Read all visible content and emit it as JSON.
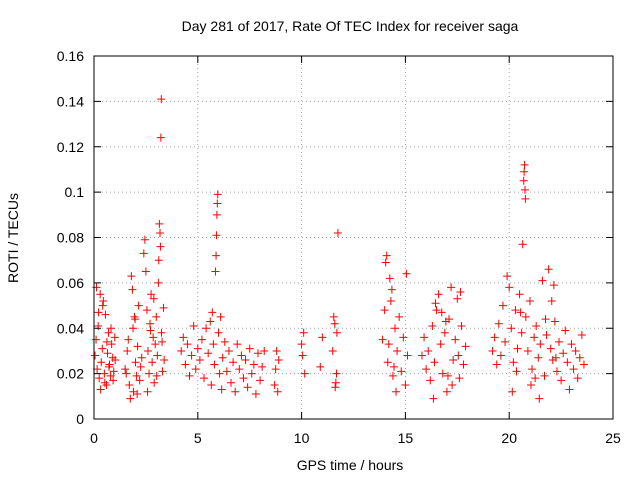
{
  "chart_data": {
    "type": "scatter",
    "title": "Day 281 of 2017, Rate Of TEC Index for receiver saga",
    "xlabel": "GPS time / hours",
    "ylabel": "ROTI / TECUs",
    "xlim": [
      0,
      25
    ],
    "ylim": [
      0,
      0.16
    ],
    "xticks": [
      0,
      5,
      10,
      15,
      20,
      25
    ],
    "yticks": [
      0,
      0.02,
      0.04,
      0.06,
      0.08,
      0.1,
      0.12,
      0.14,
      0.16
    ],
    "xtick_labels": [
      "0",
      "5",
      "10",
      "15",
      "20",
      "25"
    ],
    "ytick_labels": [
      "0",
      "0.02",
      "0.04",
      "0.06",
      "0.08",
      "0.1",
      "0.12",
      "0.14",
      "0.16"
    ],
    "grid": true,
    "marker": "+",
    "color": "#ff0000",
    "series": [
      {
        "name": "ROTI",
        "points": [
          [
            0.05,
            0.028
          ],
          [
            0.1,
            0.035
          ],
          [
            0.15,
            0.022
          ],
          [
            0.2,
            0.041
          ],
          [
            0.25,
            0.018
          ],
          [
            0.3,
            0.055
          ],
          [
            0.35,
            0.025
          ],
          [
            0.4,
            0.031
          ],
          [
            0.45,
            0.052
          ],
          [
            0.5,
            0.02
          ],
          [
            0.55,
            0.046
          ],
          [
            0.6,
            0.015
          ],
          [
            0.65,
            0.029
          ],
          [
            0.7,
            0.038
          ],
          [
            0.75,
            0.024
          ],
          [
            0.8,
            0.019
          ],
          [
            0.85,
            0.033
          ],
          [
            0.9,
            0.027
          ],
          [
            0.95,
            0.021
          ],
          [
            1.0,
            0.036
          ],
          [
            0.12,
            0.058
          ],
          [
            0.22,
            0.047
          ],
          [
            0.32,
            0.013
          ],
          [
            0.42,
            0.05
          ],
          [
            0.52,
            0.016
          ],
          [
            0.62,
            0.034
          ],
          [
            0.72,
            0.023
          ],
          [
            0.82,
            0.04
          ],
          [
            0.92,
            0.017
          ],
          [
            1.02,
            0.026
          ],
          [
            1.5,
            0.022
          ],
          [
            1.6,
            0.03
          ],
          [
            1.7,
            0.015
          ],
          [
            1.8,
            0.063
          ],
          [
            1.85,
            0.057
          ],
          [
            1.9,
            0.012
          ],
          [
            1.95,
            0.045
          ],
          [
            2.0,
            0.025
          ],
          [
            2.05,
            0.019
          ],
          [
            2.1,
            0.032
          ],
          [
            1.75,
            0.009
          ],
          [
            1.88,
            0.04
          ],
          [
            2.15,
            0.05
          ],
          [
            2.2,
            0.017
          ],
          [
            2.3,
            0.027
          ],
          [
            1.55,
            0.02
          ],
          [
            1.65,
            0.035
          ],
          [
            1.98,
            0.044
          ],
          [
            2.08,
            0.011
          ],
          [
            2.25,
            0.023
          ],
          [
            2.4,
            0.073
          ],
          [
            2.45,
            0.079
          ],
          [
            2.5,
            0.065
          ],
          [
            2.55,
            0.048
          ],
          [
            2.6,
            0.03
          ],
          [
            2.65,
            0.02
          ],
          [
            2.7,
            0.042
          ],
          [
            2.75,
            0.055
          ],
          [
            2.8,
            0.025
          ],
          [
            2.85,
            0.036
          ],
          [
            2.9,
            0.016
          ],
          [
            2.95,
            0.033
          ],
          [
            3.0,
            0.045
          ],
          [
            3.05,
            0.028
          ],
          [
            3.1,
            0.06
          ],
          [
            3.15,
            0.086
          ],
          [
            3.2,
            0.076
          ],
          [
            3.25,
            0.038
          ],
          [
            3.3,
            0.021
          ],
          [
            3.35,
            0.049
          ],
          [
            3.22,
            0.124
          ],
          [
            3.24,
            0.141
          ],
          [
            3.18,
            0.082
          ],
          [
            3.12,
            0.07
          ],
          [
            2.58,
            0.012
          ],
          [
            2.72,
            0.039
          ],
          [
            2.88,
            0.053
          ],
          [
            3.02,
            0.019
          ],
          [
            3.28,
            0.034
          ],
          [
            3.38,
            0.026
          ],
          [
            4.2,
            0.03
          ],
          [
            4.3,
            0.036
          ],
          [
            4.4,
            0.024
          ],
          [
            4.5,
            0.033
          ],
          [
            4.6,
            0.019
          ],
          [
            4.7,
            0.028
          ],
          [
            4.8,
            0.041
          ],
          [
            4.9,
            0.022
          ],
          [
            5.0,
            0.031
          ],
          [
            5.1,
            0.026
          ],
          [
            5.2,
            0.035
          ],
          [
            5.3,
            0.018
          ],
          [
            5.4,
            0.04
          ],
          [
            5.5,
            0.029
          ],
          [
            5.6,
            0.043
          ],
          [
            5.65,
            0.015
          ],
          [
            5.7,
            0.047
          ],
          [
            5.75,
            0.033
          ],
          [
            5.8,
            0.024
          ],
          [
            5.85,
            0.065
          ],
          [
            5.88,
            0.072
          ],
          [
            5.9,
            0.081
          ],
          [
            5.92,
            0.09
          ],
          [
            5.94,
            0.095
          ],
          [
            5.96,
            0.099
          ],
          [
            6.0,
            0.038
          ],
          [
            6.05,
            0.02
          ],
          [
            6.1,
            0.045
          ],
          [
            6.15,
            0.013
          ],
          [
            6.2,
            0.027
          ],
          [
            6.3,
            0.034
          ],
          [
            6.4,
            0.021
          ],
          [
            6.5,
            0.03
          ],
          [
            6.6,
            0.016
          ],
          [
            6.7,
            0.025
          ],
          [
            6.8,
            0.012
          ],
          [
            6.9,
            0.033
          ],
          [
            7.0,
            0.022
          ],
          [
            7.1,
            0.028
          ],
          [
            7.2,
            0.018
          ],
          [
            7.3,
            0.026
          ],
          [
            7.4,
            0.014
          ],
          [
            7.5,
            0.031
          ],
          [
            7.6,
            0.02
          ],
          [
            7.7,
            0.024
          ],
          [
            7.8,
            0.011
          ],
          [
            7.9,
            0.029
          ],
          [
            8.0,
            0.017
          ],
          [
            8.1,
            0.023
          ],
          [
            8.2,
            0.03
          ],
          [
            8.7,
            0.015
          ],
          [
            8.75,
            0.022
          ],
          [
            8.8,
            0.03
          ],
          [
            8.85,
            0.012
          ],
          [
            8.9,
            0.026
          ],
          [
            10.0,
            0.033
          ],
          [
            10.05,
            0.028
          ],
          [
            10.1,
            0.038
          ],
          [
            10.15,
            0.02
          ],
          [
            10.9,
            0.023
          ],
          [
            11.0,
            0.036
          ],
          [
            11.5,
            0.03
          ],
          [
            11.55,
            0.045
          ],
          [
            11.6,
            0.042
          ],
          [
            11.65,
            0.016
          ],
          [
            11.7,
            0.038
          ],
          [
            11.75,
            0.082
          ],
          [
            11.62,
            0.014
          ],
          [
            11.68,
            0.02
          ],
          [
            13.9,
            0.035
          ],
          [
            14.0,
            0.048
          ],
          [
            14.05,
            0.069
          ],
          [
            14.1,
            0.072
          ],
          [
            14.15,
            0.025
          ],
          [
            14.2,
            0.033
          ],
          [
            14.3,
            0.052
          ],
          [
            14.4,
            0.019
          ],
          [
            14.5,
            0.04
          ],
          [
            14.55,
            0.012
          ],
          [
            14.6,
            0.03
          ],
          [
            14.7,
            0.045
          ],
          [
            14.8,
            0.021
          ],
          [
            14.9,
            0.036
          ],
          [
            15.0,
            0.015
          ],
          [
            15.05,
            0.064
          ],
          [
            15.1,
            0.028
          ],
          [
            14.25,
            0.062
          ],
          [
            14.35,
            0.057
          ],
          [
            14.45,
            0.023
          ],
          [
            15.8,
            0.028
          ],
          [
            15.9,
            0.036
          ],
          [
            16.0,
            0.022
          ],
          [
            16.1,
            0.03
          ],
          [
            16.2,
            0.017
          ],
          [
            16.3,
            0.041
          ],
          [
            16.4,
            0.025
          ],
          [
            16.5,
            0.048
          ],
          [
            16.6,
            0.055
          ],
          [
            16.7,
            0.033
          ],
          [
            16.8,
            0.02
          ],
          [
            16.9,
            0.038
          ],
          [
            17.0,
            0.012
          ],
          [
            17.1,
            0.044
          ],
          [
            17.2,
            0.058
          ],
          [
            17.3,
            0.026
          ],
          [
            17.4,
            0.035
          ],
          [
            17.5,
            0.053
          ],
          [
            17.6,
            0.018
          ],
          [
            17.7,
            0.041
          ],
          [
            17.8,
            0.024
          ],
          [
            17.9,
            0.032
          ],
          [
            16.35,
            0.009
          ],
          [
            16.75,
            0.047
          ],
          [
            17.25,
            0.015
          ],
          [
            17.55,
            0.028
          ],
          [
            17.65,
            0.056
          ],
          [
            16.45,
            0.051
          ],
          [
            16.95,
            0.043
          ],
          [
            17.05,
            0.019
          ],
          [
            19.2,
            0.03
          ],
          [
            19.3,
            0.036
          ],
          [
            19.4,
            0.024
          ],
          [
            19.5,
            0.042
          ],
          [
            19.6,
            0.028
          ],
          [
            19.7,
            0.05
          ],
          [
            19.8,
            0.034
          ],
          [
            19.9,
            0.063
          ],
          [
            20.0,
            0.058
          ],
          [
            20.1,
            0.04
          ],
          [
            20.2,
            0.025
          ],
          [
            20.3,
            0.048
          ],
          [
            20.4,
            0.031
          ],
          [
            20.5,
            0.055
          ],
          [
            20.6,
            0.038
          ],
          [
            20.65,
            0.077
          ],
          [
            20.7,
            0.105
          ],
          [
            20.72,
            0.109
          ],
          [
            20.74,
            0.112
          ],
          [
            20.76,
            0.101
          ],
          [
            20.78,
            0.097
          ],
          [
            20.8,
            0.045
          ],
          [
            20.9,
            0.03
          ],
          [
            21.0,
            0.052
          ],
          [
            21.1,
            0.022
          ],
          [
            21.2,
            0.036
          ],
          [
            21.3,
            0.041
          ],
          [
            21.4,
            0.027
          ],
          [
            21.5,
            0.033
          ],
          [
            21.6,
            0.061
          ],
          [
            21.7,
            0.019
          ],
          [
            21.8,
            0.037
          ],
          [
            21.9,
            0.066
          ],
          [
            22.0,
            0.031
          ],
          [
            22.1,
            0.026
          ],
          [
            22.2,
            0.043
          ],
          [
            22.3,
            0.021
          ],
          [
            22.4,
            0.034
          ],
          [
            22.5,
            0.017
          ],
          [
            22.6,
            0.029
          ],
          [
            22.7,
            0.039
          ],
          [
            22.8,
            0.025
          ],
          [
            22.9,
            0.013
          ],
          [
            23.0,
            0.033
          ],
          [
            23.1,
            0.022
          ],
          [
            23.2,
            0.03
          ],
          [
            23.3,
            0.018
          ],
          [
            23.4,
            0.027
          ],
          [
            23.5,
            0.037
          ],
          [
            23.6,
            0.024
          ],
          [
            20.15,
            0.012
          ],
          [
            20.35,
            0.021
          ],
          [
            20.55,
            0.047
          ],
          [
            21.05,
            0.015
          ],
          [
            21.25,
            0.018
          ],
          [
            21.45,
            0.009
          ],
          [
            21.75,
            0.044
          ],
          [
            22.05,
            0.052
          ],
          [
            22.15,
            0.059
          ],
          [
            22.25,
            0.027
          ]
        ]
      }
    ]
  }
}
